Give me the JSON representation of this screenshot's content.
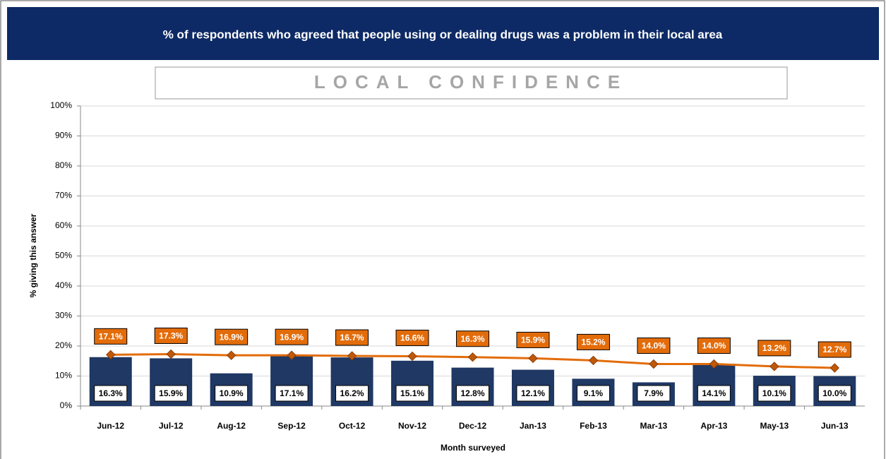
{
  "chart_data": {
    "type": "combo",
    "title": "% of respondents who agreed that people using or dealing drugs was a problem in their local area",
    "subtitle": "LOCAL CONFIDENCE",
    "x_label": "Month surveyed",
    "y_label": "% giving this answer",
    "categories": [
      "Jun-12",
      "Jul-12",
      "Aug-12",
      "Sep-12",
      "Oct-12",
      "Nov-12",
      "Dec-12",
      "Jan-13",
      "Feb-13",
      "Mar-13",
      "Apr-13",
      "May-13",
      "Jun-13"
    ],
    "series": [
      {
        "type": "bar",
        "color": "#1f3864",
        "values": [
          16.3,
          15.9,
          10.9,
          17.1,
          16.2,
          15.1,
          12.8,
          12.1,
          9.1,
          7.9,
          14.1,
          10.1,
          10.0
        ],
        "value_labels": [
          "16.3%",
          "15.9%",
          "10.9%",
          "17.1%",
          "16.2%",
          "15.1%",
          "12.8%",
          "12.1%",
          "9.1%",
          "7.9%",
          "14.1%",
          "10.1%",
          "10.0%"
        ]
      },
      {
        "type": "line",
        "color": "#e36c0a",
        "values": [
          17.1,
          17.3,
          16.9,
          16.9,
          16.7,
          16.6,
          16.3,
          15.9,
          15.2,
          14.0,
          14.0,
          13.2,
          12.7
        ],
        "value_labels": [
          "17.1%",
          "17.3%",
          "16.9%",
          "16.9%",
          "16.7%",
          "16.6%",
          "16.3%",
          "15.9%",
          "15.2%",
          "14.0%",
          "14.0%",
          "13.2%",
          "12.7%"
        ]
      }
    ],
    "ylim": [
      0,
      100
    ],
    "yticks": [
      {
        "value": 0,
        "label": "0%"
      },
      {
        "value": 10,
        "label": "10%"
      },
      {
        "value": 20,
        "label": "20%"
      },
      {
        "value": 30,
        "label": "30%"
      },
      {
        "value": 40,
        "label": "40%"
      },
      {
        "value": 50,
        "label": "50%"
      },
      {
        "value": 60,
        "label": "60%"
      },
      {
        "value": 70,
        "label": "70%"
      },
      {
        "value": 80,
        "label": "80%"
      },
      {
        "value": 90,
        "label": "90%"
      },
      {
        "value": 100,
        "label": "100%"
      }
    ],
    "grid": true
  }
}
